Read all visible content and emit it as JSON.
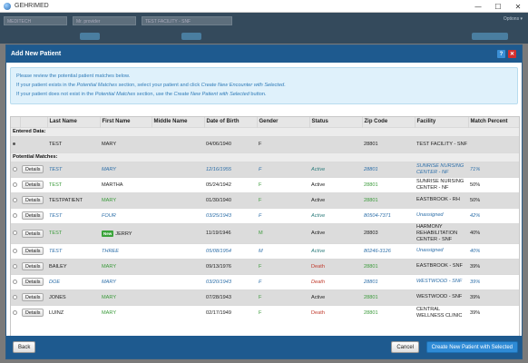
{
  "window": {
    "title": "GEHRIMED",
    "minimize": "—",
    "maximize": "☐",
    "close": "✕"
  },
  "app_header": {
    "selector_1": "MEDITECH",
    "selector_2": "Mr. provider",
    "selector_3": "TEST FACILITY - SNF",
    "right_text": "Options ▾"
  },
  "modal": {
    "title": "Add New Patient",
    "help_icon": "?",
    "close_icon": "✕",
    "info": {
      "line1": "Please review the potential patient matches below.",
      "line2_pre": "If your patient exists in the ",
      "line2_em1": "Potential Matches",
      "line2_mid": " section, select your patient and click ",
      "line2_em2": "Create New Encounter with Selected",
      "line2_post": ".",
      "line3_pre": "If your patient does not exist in the ",
      "line3_em1": "Potential Matches",
      "line3_mid": " section, use the ",
      "line3_em2": "Create New Patient with Selected",
      "line3_post": " button."
    },
    "columns": [
      "",
      "",
      "Last Name",
      "First Name",
      "Middle Name",
      "Date of Birth",
      "Gender",
      "Status",
      "Zip Code",
      "Facility",
      "Match Percent"
    ],
    "entered_label": "Entered Data:",
    "potential_label": "Potential Matches:",
    "details_label": "Details",
    "new_badge": "New",
    "entered": {
      "last": "TEST",
      "first": "MARY",
      "middle": "",
      "dob": "04/06/1940",
      "gender": "F",
      "status": "",
      "zip": "28801",
      "facility": "TEST FACILITY - SNF",
      "match": ""
    },
    "matches": [
      {
        "last": "TEST",
        "first": "MARY",
        "middle": "",
        "dob": "12/16/1955",
        "gender": "F",
        "status": "Active",
        "zip": "28801",
        "facility": "SUNRISE NURSING CENTER - NF",
        "match": "71%",
        "italic": true,
        "badge": false,
        "status_color": "teal",
        "name_color": "",
        "zip_color": ""
      },
      {
        "last": "TEST",
        "first": "MARTHA",
        "middle": "",
        "dob": "05/24/1942",
        "gender": "F",
        "status": "Active",
        "zip": "28801",
        "facility": "SUNRISE NURSING CENTER - NF",
        "match": "50%",
        "italic": false,
        "badge": false,
        "status_color": "",
        "name_color": "green-last",
        "zip_color": "green"
      },
      {
        "last": "TESTPATIENT",
        "first": "MARY",
        "middle": "",
        "dob": "01/30/1940",
        "gender": "F",
        "status": "Active",
        "zip": "28801",
        "facility": "EASTBROOK - RH",
        "match": "50%",
        "italic": false,
        "badge": false,
        "status_color": "",
        "name_color": "green-first",
        "zip_color": "green"
      },
      {
        "last": "TEST",
        "first": "FOUR",
        "middle": "",
        "dob": "03/25/1943",
        "gender": "F",
        "status": "Active",
        "zip": "80504-7371",
        "facility": "Unassigned",
        "match": "42%",
        "italic": true,
        "badge": false,
        "status_color": "teal",
        "name_color": "",
        "zip_color": ""
      },
      {
        "last": "TEST",
        "first": "JERRY",
        "middle": "",
        "dob": "11/19/1946",
        "gender": "M",
        "status": "Active",
        "zip": "28803",
        "facility": "HARMONY REHABILITATION CENTER - SNF",
        "match": "40%",
        "italic": false,
        "badge": true,
        "status_color": "",
        "name_color": "green-last",
        "zip_color": ""
      },
      {
        "last": "TEST",
        "first": "THREE",
        "middle": "",
        "dob": "05/08/1954",
        "gender": "M",
        "status": "Active",
        "zip": "80246-3126",
        "facility": "Unassigned",
        "match": "40%",
        "italic": true,
        "badge": false,
        "status_color": "teal",
        "name_color": "",
        "zip_color": ""
      },
      {
        "last": "BAILEY",
        "first": "MARY",
        "middle": "",
        "dob": "09/13/1976",
        "gender": "F",
        "status": "Death",
        "zip": "28801",
        "facility": "EASTBROOK - SNF",
        "match": "39%",
        "italic": false,
        "badge": false,
        "status_color": "red",
        "name_color": "green-first",
        "zip_color": "green"
      },
      {
        "last": "DOE",
        "first": "MARY",
        "middle": "",
        "dob": "03/20/1943",
        "gender": "F",
        "status": "Death",
        "zip": "28801",
        "facility": "WESTWOOD - SNF",
        "match": "39%",
        "italic": true,
        "badge": false,
        "status_color": "red",
        "name_color": "",
        "zip_color": ""
      },
      {
        "last": "JONES",
        "first": "MARY",
        "middle": "",
        "dob": "07/28/1943",
        "gender": "F",
        "status": "Active",
        "zip": "28801",
        "facility": "WESTWOOD - SNF",
        "match": "39%",
        "italic": false,
        "badge": false,
        "status_color": "",
        "name_color": "green-first",
        "zip_color": "green"
      },
      {
        "last": "LUINZ",
        "first": "MARY",
        "middle": "",
        "dob": "02/17/1949",
        "gender": "F",
        "status": "Death",
        "zip": "28801",
        "facility": "CENTRAL WELLNESS CLINIC",
        "match": "39%",
        "italic": false,
        "badge": false,
        "status_color": "red",
        "name_color": "green-first",
        "zip_color": "green"
      }
    ],
    "footer": {
      "back": "Back",
      "cancel": "Cancel",
      "create": "Create New Patient with Selected"
    }
  }
}
